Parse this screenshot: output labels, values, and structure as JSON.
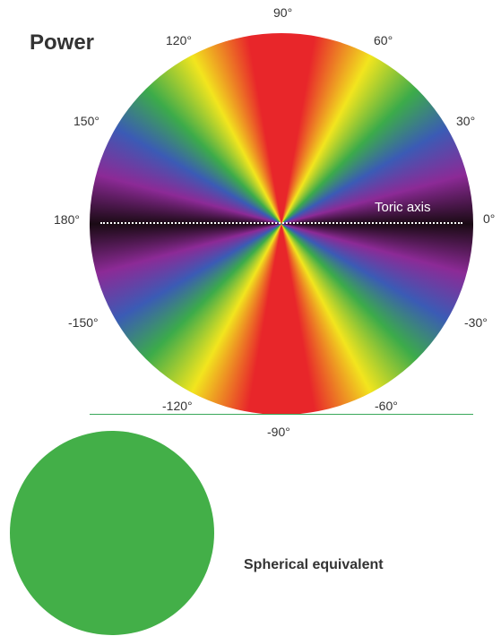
{
  "title": "Power",
  "wheel": {
    "axis_label": "Toric axis",
    "angle_labels": {
      "a90": "90°",
      "a60": "60°",
      "a30": "30°",
      "a0": "0°",
      "an30": "-30°",
      "an60": "-60°",
      "an90": "-90°",
      "an120": "-120°",
      "an150": "-150°",
      "a180": "180°",
      "a150": "150°",
      "a120": "120°"
    },
    "colors": [
      "#1a0a14",
      "#8c2a96",
      "#3b5bb5",
      "#3cab4a",
      "#f2e51e",
      "#e8262a"
    ]
  },
  "sphere": {
    "label": "Spherical equivalent",
    "color": "#43af48"
  },
  "ground_color": "#3aa85a"
}
